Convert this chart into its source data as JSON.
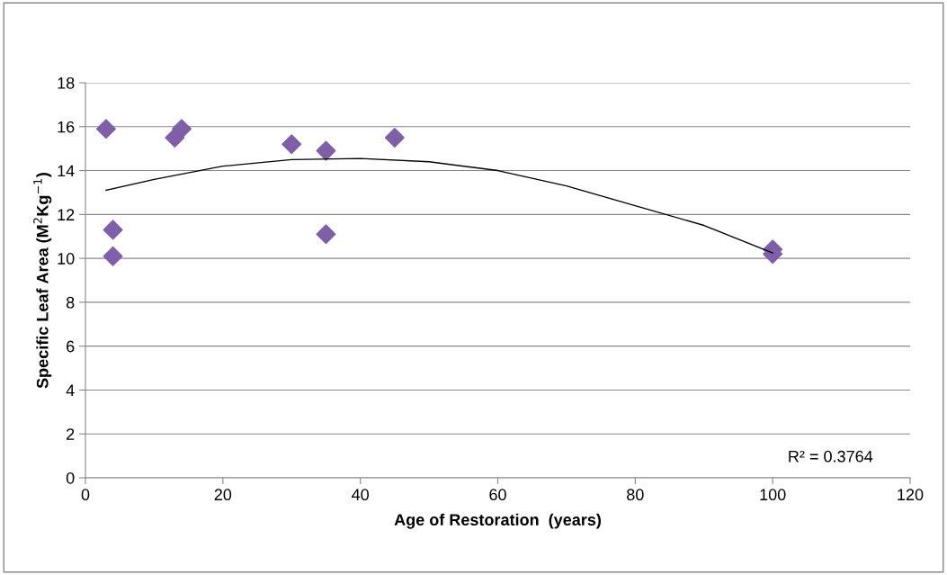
{
  "chart_data": {
    "type": "scatter",
    "xlabel": "Age of Restoration  (years)",
    "ylabel": "Specific Leaf Area (M$^{2}$Kg$^{−1}$)",
    "xlim": [
      0,
      120
    ],
    "xticks": [
      0,
      20,
      40,
      60,
      80,
      100,
      120
    ],
    "ylim": [
      0,
      18
    ],
    "yticks": [
      0,
      2,
      4,
      6,
      8,
      10,
      12,
      14,
      16,
      18
    ],
    "grid": "y",
    "legend": false,
    "series": [
      {
        "color": "#7f5fa8",
        "marker": "diamond",
        "x": [
          3,
          4,
          4,
          13,
          14,
          30,
          35,
          35,
          45,
          100,
          100
        ],
        "values": [
          15.9,
          11.3,
          10.1,
          15.5,
          15.9,
          15.2,
          14.9,
          11.1,
          15.5,
          10.4,
          10.2
        ]
      },
      {
        "type": "line",
        "color": "#000000",
        "marker": "none",
        "x": [
          3,
          10,
          20,
          30,
          40,
          50,
          60,
          70,
          80,
          90,
          100
        ],
        "values": [
          13.1,
          13.6,
          14.2,
          14.5,
          14.55,
          14.4,
          14.0,
          13.3,
          12.4,
          11.5,
          10.25
        ]
      }
    ],
    "annotations": [
      "R² = 0.3764"
    ]
  }
}
